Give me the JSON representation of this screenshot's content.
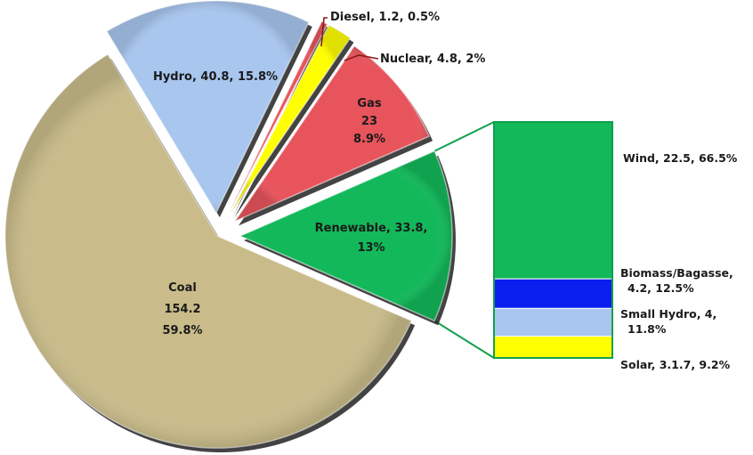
{
  "chart_data": {
    "type": "pie",
    "variant": "bar-of-pie",
    "title": "",
    "legend": "none",
    "slices": [
      {
        "name": "Coal",
        "value": 154.2,
        "percent": 59.8,
        "color": "#C9BC8A",
        "label_lines": [
          "Coal",
          "154.2",
          "59.8%"
        ]
      },
      {
        "name": "Hydro",
        "value": 40.8,
        "percent": 15.8,
        "color": "#A8C6EE",
        "label_lines": [
          "Hydro, 40.8, 15.8%"
        ]
      },
      {
        "name": "Diesel",
        "value": 1.2,
        "percent": 0.5,
        "color": "#E8545C",
        "label_lines": [
          "Diesel, 1.2, 0.5%"
        ]
      },
      {
        "name": "Nuclear",
        "value": 4.8,
        "percent": 2,
        "color": "#FFFF00",
        "label_lines": [
          "Nuclear, 4.8, 2%"
        ]
      },
      {
        "name": "Gas",
        "value": 23,
        "percent": 8.9,
        "color": "#E8545C",
        "label_lines": [
          "Gas",
          "23",
          "8.9%"
        ]
      },
      {
        "name": "Renewable",
        "value": 33.8,
        "percent": 13,
        "color": "#13B85A",
        "label_lines": [
          "Renewable, 33.8,",
          "13%"
        ]
      }
    ],
    "breakdown": {
      "of": "Renewable",
      "segments": [
        {
          "name": "Wind",
          "value": 22.5,
          "percent": 66.5,
          "color": "#13B85A",
          "label_lines": [
            "Wind, 22.5, 66.5%"
          ]
        },
        {
          "name": "Biomass/Bagasse",
          "value": 4.2,
          "percent": 12.5,
          "color": "#0A1EF0",
          "label_lines": [
            "Biomass/Bagasse,",
            "4.2, 12.5%"
          ]
        },
        {
          "name": "Small Hydro",
          "value": 4,
          "percent": 11.8,
          "color": "#A8C6EE",
          "label_lines": [
            "Small Hydro, 4,",
            "11.8%"
          ]
        },
        {
          "name": "Solar",
          "value": 3.17,
          "percent": 9.2,
          "color": "#FFFF00",
          "label_lines": [
            "Solar, 3.1.7, 9.2%"
          ]
        }
      ]
    }
  }
}
